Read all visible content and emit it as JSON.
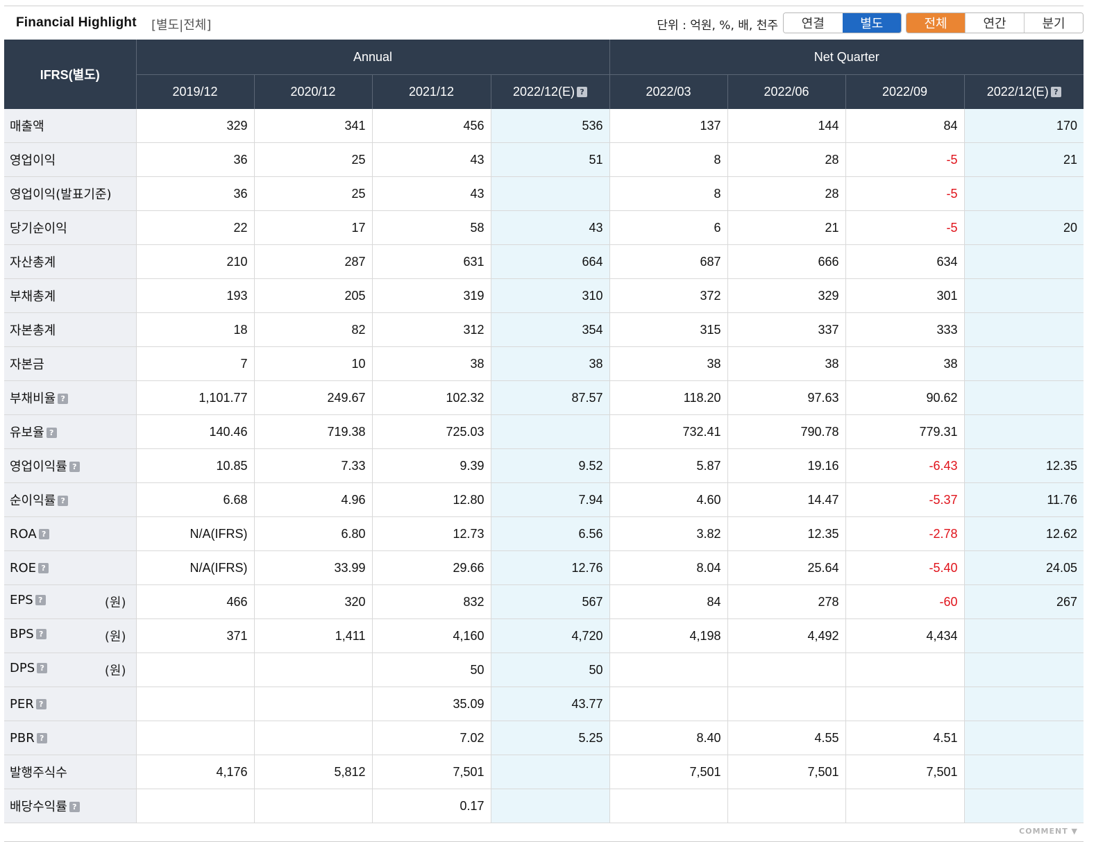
{
  "header": {
    "title": "Financial Highlight",
    "subtitle": "[별도|전체]",
    "unit_text": "단위 : 억원, %, 배, 천주",
    "scope_buttons": [
      {
        "label": "연결",
        "active": false
      },
      {
        "label": "별도",
        "active": true
      }
    ],
    "period_buttons": [
      {
        "label": "전체",
        "active": true
      },
      {
        "label": "연간",
        "active": false
      },
      {
        "label": "분기",
        "active": false
      }
    ]
  },
  "table": {
    "corner": "IFRS(별도)",
    "groups": {
      "annual": "Annual",
      "quarter": "Net Quarter"
    },
    "columns": [
      "2019/12",
      "2020/12",
      "2021/12",
      "2022/12(E)",
      "2022/03",
      "2022/06",
      "2022/09",
      "2022/12(E)"
    ],
    "rows": [
      {
        "label": "매출액",
        "help": false,
        "unit": "",
        "values": [
          "329",
          "341",
          "456",
          "536",
          "137",
          "144",
          "84",
          "170"
        ]
      },
      {
        "label": "영업이익",
        "help": false,
        "unit": "",
        "values": [
          "36",
          "25",
          "43",
          "51",
          "8",
          "28",
          "-5",
          "21"
        ]
      },
      {
        "label": "영업이익(발표기준)",
        "help": false,
        "unit": "",
        "values": [
          "36",
          "25",
          "43",
          "",
          "8",
          "28",
          "-5",
          ""
        ]
      },
      {
        "label": "당기순이익",
        "help": false,
        "unit": "",
        "values": [
          "22",
          "17",
          "58",
          "43",
          "6",
          "21",
          "-5",
          "20"
        ]
      },
      {
        "label": "자산총계",
        "help": false,
        "unit": "",
        "values": [
          "210",
          "287",
          "631",
          "664",
          "687",
          "666",
          "634",
          ""
        ]
      },
      {
        "label": "부채총계",
        "help": false,
        "unit": "",
        "values": [
          "193",
          "205",
          "319",
          "310",
          "372",
          "329",
          "301",
          ""
        ]
      },
      {
        "label": "자본총계",
        "help": false,
        "unit": "",
        "values": [
          "18",
          "82",
          "312",
          "354",
          "315",
          "337",
          "333",
          ""
        ]
      },
      {
        "label": "자본금",
        "help": false,
        "unit": "",
        "values": [
          "7",
          "10",
          "38",
          "38",
          "38",
          "38",
          "38",
          ""
        ]
      },
      {
        "label": "부채비율",
        "help": true,
        "unit": "",
        "values": [
          "1,101.77",
          "249.67",
          "102.32",
          "87.57",
          "118.20",
          "97.63",
          "90.62",
          ""
        ]
      },
      {
        "label": "유보율",
        "help": true,
        "unit": "",
        "values": [
          "140.46",
          "719.38",
          "725.03",
          "",
          "732.41",
          "790.78",
          "779.31",
          ""
        ]
      },
      {
        "label": "영업이익률",
        "help": true,
        "unit": "",
        "values": [
          "10.85",
          "7.33",
          "9.39",
          "9.52",
          "5.87",
          "19.16",
          "-6.43",
          "12.35"
        ]
      },
      {
        "label": "순이익률",
        "help": true,
        "unit": "",
        "values": [
          "6.68",
          "4.96",
          "12.80",
          "7.94",
          "4.60",
          "14.47",
          "-5.37",
          "11.76"
        ]
      },
      {
        "label": "ROA",
        "help": true,
        "unit": "",
        "values": [
          "N/A(IFRS)",
          "6.80",
          "12.73",
          "6.56",
          "3.82",
          "12.35",
          "-2.78",
          "12.62"
        ]
      },
      {
        "label": "ROE",
        "help": true,
        "unit": "",
        "values": [
          "N/A(IFRS)",
          "33.99",
          "29.66",
          "12.76",
          "8.04",
          "25.64",
          "-5.40",
          "24.05"
        ]
      },
      {
        "label": "EPS",
        "help": true,
        "unit": "(원)",
        "values": [
          "466",
          "320",
          "832",
          "567",
          "84",
          "278",
          "-60",
          "267"
        ]
      },
      {
        "label": "BPS",
        "help": true,
        "unit": "(원)",
        "values": [
          "371",
          "1,411",
          "4,160",
          "4,720",
          "4,198",
          "4,492",
          "4,434",
          ""
        ]
      },
      {
        "label": "DPS",
        "help": true,
        "unit": "(원)",
        "values": [
          "",
          "",
          "50",
          "50",
          "",
          "",
          "",
          ""
        ]
      },
      {
        "label": "PER",
        "help": true,
        "unit": "",
        "values": [
          "",
          "",
          "35.09",
          "43.77",
          "",
          "",
          "",
          ""
        ]
      },
      {
        "label": "PBR",
        "help": true,
        "unit": "",
        "values": [
          "",
          "",
          "7.02",
          "5.25",
          "8.40",
          "4.55",
          "4.51",
          ""
        ]
      },
      {
        "label": "발행주식수",
        "help": false,
        "unit": "",
        "values": [
          "4,176",
          "5,812",
          "7,501",
          "",
          "7,501",
          "7,501",
          "7,501",
          ""
        ]
      },
      {
        "label": "배당수익률",
        "help": true,
        "unit": "",
        "values": [
          "",
          "",
          "0.17",
          "",
          "",
          "",
          "",
          ""
        ]
      }
    ]
  },
  "footer": {
    "comment": "COMMENT ▼"
  },
  "colors": {
    "header_bg": "#2f3c4d",
    "estimate_bg": "#e9f6fb",
    "negative": "#e0131b",
    "active_blue": "#1f69c4",
    "active_orange": "#ea8533"
  }
}
